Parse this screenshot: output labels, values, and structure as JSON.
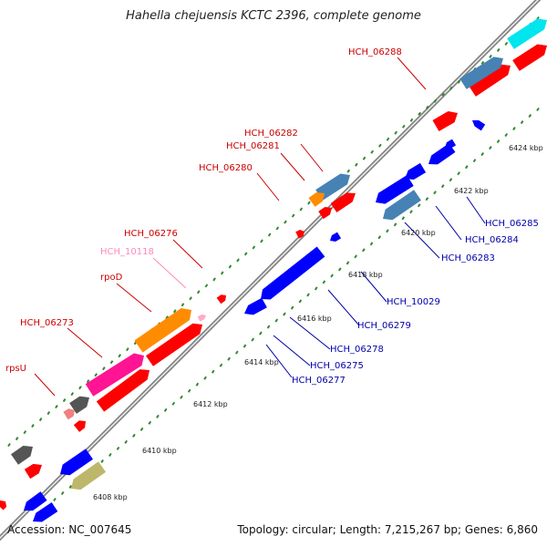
{
  "title": "Hahella chejuensis KCTC 2396, complete genome",
  "footer": {
    "accession": "Accession: NC_007645",
    "summary": "Topology: circular; Length: 7,215,267 bp; Genes: 6,860"
  },
  "colors": {
    "forward_gene": "#ff0000",
    "reverse_gene": "#0000ff",
    "forward_label": "#cc0000",
    "reverse_label": "#0000aa",
    "backbone": "#888888",
    "tick": "#2e8b2e"
  },
  "kbp_ticks": [
    "6408 kbp",
    "6410 kbp",
    "6412 kbp",
    "6414 kbp",
    "6416 kbp",
    "6418 kbp",
    "6420 kbp",
    "6422 kbp",
    "6424 kbp"
  ],
  "upper_labels": [
    {
      "text": "HCH_06288",
      "color": "#cc0000"
    },
    {
      "text": "HCH_06282",
      "color": "#cc0000"
    },
    {
      "text": "HCH_06281",
      "color": "#cc0000"
    },
    {
      "text": "HCH_06280",
      "color": "#cc0000"
    },
    {
      "text": "HCH_06276",
      "color": "#cc0000"
    },
    {
      "text": "HCH_10118",
      "color": "#ff88bb"
    },
    {
      "text": "rpoD",
      "color": "#cc0000"
    },
    {
      "text": "HCH_06273",
      "color": "#cc0000"
    },
    {
      "text": "rpsU",
      "color": "#cc0000"
    }
  ],
  "lower_labels": [
    {
      "text": "HCH_06285",
      "color": "#0000aa"
    },
    {
      "text": "HCH_06284",
      "color": "#0000aa"
    },
    {
      "text": "HCH_06283",
      "color": "#0000aa"
    },
    {
      "text": "HCH_10029",
      "color": "#0000aa"
    },
    {
      "text": "HCH_06279",
      "color": "#0000aa"
    },
    {
      "text": "HCH_06278",
      "color": "#0000aa"
    },
    {
      "text": "HCH_06275",
      "color": "#0000aa"
    },
    {
      "text": "HCH_06277",
      "color": "#0000aa"
    }
  ]
}
